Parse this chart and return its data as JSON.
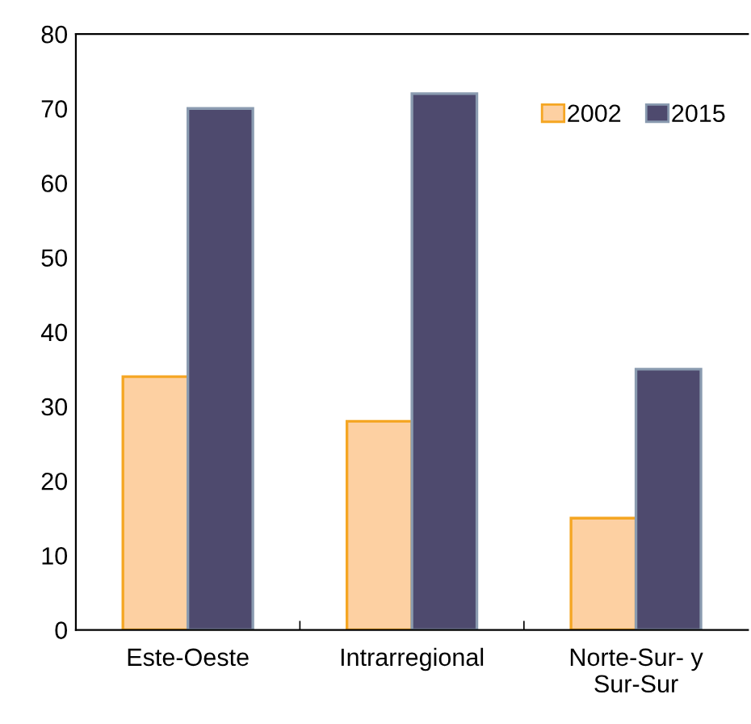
{
  "chart_data": {
    "type": "bar",
    "categories": [
      "Este-Oeste",
      "Intrarregional",
      "Norte-Sur- y\nSur-Sur"
    ],
    "series": [
      {
        "name": "2002",
        "color": "#fdd0a2",
        "values": [
          34,
          28,
          15
        ]
      },
      {
        "name": "2015",
        "color": "#4e4a6e",
        "values": [
          70,
          72,
          35
        ]
      }
    ],
    "ylim": [
      0,
      80
    ],
    "yticks": [
      0,
      10,
      20,
      30,
      40,
      50,
      60,
      70,
      80
    ],
    "grid": false,
    "legend": "top right"
  }
}
